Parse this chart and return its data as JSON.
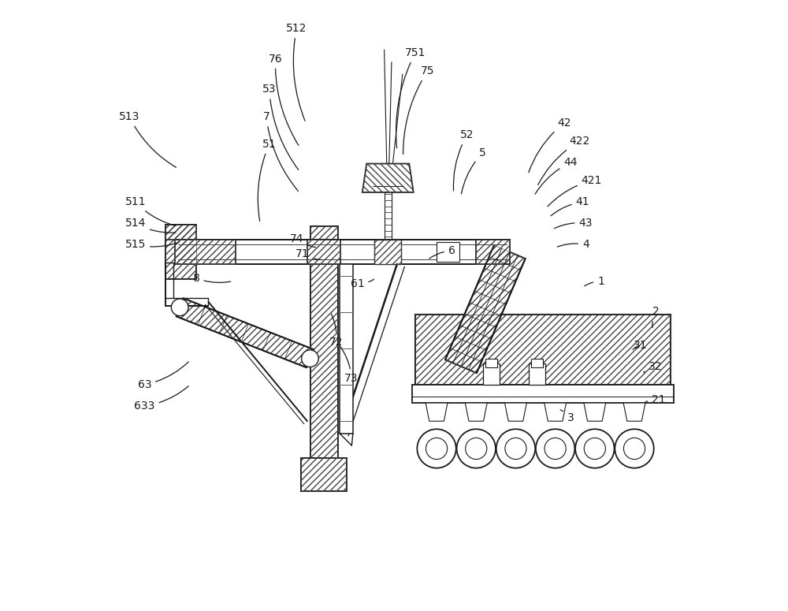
{
  "bg_color": "#ffffff",
  "lc": "#1a1a1a",
  "figsize": [
    10.0,
    7.75
  ],
  "dpi": 100,
  "label_arrows": {
    "512": [
      0.34,
      0.045,
      0.355,
      0.2
    ],
    "76": [
      0.305,
      0.095,
      0.345,
      0.24
    ],
    "53": [
      0.295,
      0.145,
      0.345,
      0.28
    ],
    "7": [
      0.29,
      0.19,
      0.345,
      0.315
    ],
    "51": [
      0.295,
      0.235,
      0.28,
      0.365
    ],
    "513": [
      0.065,
      0.19,
      0.145,
      0.275
    ],
    "511": [
      0.075,
      0.33,
      0.145,
      0.37
    ],
    "514": [
      0.075,
      0.365,
      0.145,
      0.38
    ],
    "515": [
      0.075,
      0.4,
      0.15,
      0.395
    ],
    "74": [
      0.34,
      0.39,
      0.375,
      0.405
    ],
    "71": [
      0.35,
      0.415,
      0.385,
      0.425
    ],
    "8": [
      0.175,
      0.455,
      0.235,
      0.46
    ],
    "72": [
      0.405,
      0.56,
      0.395,
      0.51
    ],
    "73": [
      0.43,
      0.62,
      0.41,
      0.565
    ],
    "63": [
      0.09,
      0.63,
      0.165,
      0.59
    ],
    "633": [
      0.09,
      0.665,
      0.165,
      0.63
    ],
    "61": [
      0.44,
      0.465,
      0.47,
      0.455
    ],
    "6": [
      0.595,
      0.41,
      0.555,
      0.425
    ],
    "751": [
      0.535,
      0.085,
      0.505,
      0.245
    ],
    "75": [
      0.555,
      0.115,
      0.515,
      0.255
    ],
    "52": [
      0.62,
      0.22,
      0.598,
      0.315
    ],
    "5": [
      0.645,
      0.25,
      0.61,
      0.32
    ],
    "42": [
      0.78,
      0.2,
      0.72,
      0.285
    ],
    "422": [
      0.805,
      0.23,
      0.735,
      0.305
    ],
    "44": [
      0.79,
      0.265,
      0.73,
      0.32
    ],
    "421": [
      0.825,
      0.295,
      0.75,
      0.34
    ],
    "41": [
      0.81,
      0.33,
      0.755,
      0.355
    ],
    "43": [
      0.815,
      0.365,
      0.76,
      0.375
    ],
    "4": [
      0.815,
      0.4,
      0.765,
      0.405
    ],
    "1": [
      0.84,
      0.46,
      0.81,
      0.47
    ],
    "2": [
      0.93,
      0.51,
      0.925,
      0.54
    ],
    "31": [
      0.905,
      0.565,
      0.89,
      0.575
    ],
    "32": [
      0.93,
      0.6,
      0.91,
      0.61
    ],
    "21": [
      0.935,
      0.655,
      0.91,
      0.66
    ],
    "3": [
      0.79,
      0.685,
      0.77,
      0.67
    ]
  }
}
